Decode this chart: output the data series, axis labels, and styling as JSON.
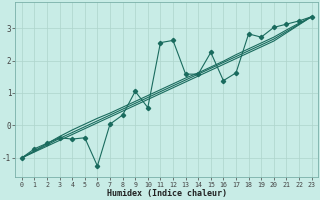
{
  "xlabel": "Humidex (Indice chaleur)",
  "bg_color": "#c8ece6",
  "line_color": "#1a6b5e",
  "grid_color": "#aed4cc",
  "spine_color": "#7ab0a8",
  "x_data": [
    0,
    1,
    2,
    3,
    4,
    5,
    6,
    7,
    8,
    9,
    10,
    11,
    12,
    13,
    14,
    15,
    16,
    17,
    18,
    19,
    20,
    21,
    22,
    23
  ],
  "y_main": [
    -1.0,
    -0.72,
    -0.55,
    -0.38,
    -0.42,
    -0.38,
    -1.25,
    0.04,
    0.32,
    1.05,
    0.55,
    2.55,
    2.62,
    1.58,
    1.58,
    2.25,
    1.38,
    1.62,
    2.82,
    2.72,
    3.02,
    3.12,
    3.22,
    3.35
  ],
  "y_trend1": [
    -1.0,
    -0.82,
    -0.64,
    -0.46,
    -0.28,
    -0.1,
    0.08,
    0.26,
    0.44,
    0.62,
    0.8,
    0.98,
    1.16,
    1.34,
    1.52,
    1.7,
    1.88,
    2.06,
    2.24,
    2.42,
    2.6,
    2.85,
    3.1,
    3.35
  ],
  "y_trend2": [
    -1.0,
    -0.8,
    -0.6,
    -0.4,
    -0.22,
    -0.04,
    0.14,
    0.32,
    0.5,
    0.68,
    0.86,
    1.04,
    1.22,
    1.4,
    1.58,
    1.76,
    1.94,
    2.12,
    2.3,
    2.48,
    2.66,
    2.89,
    3.12,
    3.35
  ],
  "y_trend3": [
    -1.0,
    -0.78,
    -0.56,
    -0.34,
    -0.14,
    0.04,
    0.22,
    0.38,
    0.56,
    0.74,
    0.92,
    1.1,
    1.28,
    1.46,
    1.62,
    1.8,
    1.98,
    2.18,
    2.36,
    2.54,
    2.72,
    2.94,
    3.15,
    3.35
  ],
  "xlim": [
    -0.5,
    23.5
  ],
  "ylim": [
    -1.6,
    3.8
  ],
  "yticks": [
    -1,
    0,
    1,
    2,
    3
  ],
  "xticks": [
    0,
    1,
    2,
    3,
    4,
    5,
    6,
    7,
    8,
    9,
    10,
    11,
    12,
    13,
    14,
    15,
    16,
    17,
    18,
    19,
    20,
    21,
    22,
    23
  ]
}
